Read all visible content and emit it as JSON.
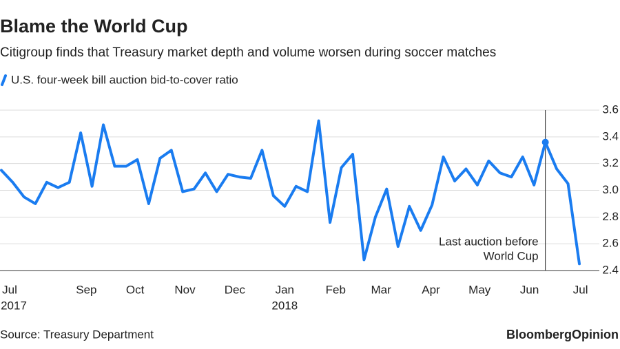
{
  "chart_data": {
    "type": "line",
    "title": "Blame the World Cup",
    "subtitle": "Citigroup finds that Treasury market depth and volume worsen during soccer matches",
    "source": "Source: Treasury Department",
    "brand": "BloombergOpinion",
    "categories": [
      null,
      null,
      null,
      null,
      null,
      null,
      null,
      null,
      null,
      null,
      null,
      null,
      null,
      null,
      null,
      null,
      null,
      null,
      null,
      null,
      null,
      null,
      null,
      null,
      null,
      null,
      null,
      null,
      null,
      null,
      null,
      null,
      null,
      null,
      null,
      null,
      null,
      null,
      null,
      null,
      null,
      null,
      null,
      null,
      null,
      null,
      null,
      null,
      null,
      null,
      null,
      null
    ],
    "series": [
      {
        "name": "U.S. four-week bill auction bid-to-cover ratio",
        "color": "#1a7cf0",
        "values": [
          3.15,
          3.06,
          2.95,
          2.9,
          3.06,
          3.02,
          3.06,
          3.43,
          3.03,
          3.49,
          3.18,
          3.18,
          3.23,
          2.9,
          3.24,
          3.3,
          2.99,
          3.01,
          3.13,
          2.99,
          3.12,
          3.1,
          3.09,
          3.3,
          2.96,
          2.88,
          3.03,
          2.99,
          3.52,
          2.76,
          3.17,
          3.27,
          2.48,
          2.8,
          3.01,
          2.58,
          2.88,
          2.7,
          2.89,
          3.25,
          3.07,
          3.16,
          3.04,
          3.22,
          3.13,
          3.1,
          3.25,
          3.04,
          3.36,
          3.16,
          3.05,
          2.45
        ]
      }
    ],
    "xlim": [
      0,
      51
    ],
    "xticks": [
      {
        "value": 0.2,
        "label": "Jul"
      },
      {
        "value": 7.5,
        "label": "Sep"
      },
      {
        "value": 11.8,
        "label": "Oct"
      },
      {
        "value": 16.2,
        "label": "Nov"
      },
      {
        "value": 20.6,
        "label": "Dec"
      },
      {
        "value": 25,
        "label": "Jan"
      },
      {
        "value": 29.5,
        "label": "Feb"
      },
      {
        "value": 33.5,
        "label": "Mar"
      },
      {
        "value": 37.9,
        "label": "Apr"
      },
      {
        "value": 42.2,
        "label": "May"
      },
      {
        "value": 46.6,
        "label": "Jun"
      },
      {
        "value": 51.1,
        "label": "Jul"
      }
    ],
    "xtick_years": [
      {
        "value": 0.2,
        "label": "2017"
      },
      {
        "value": 25,
        "label": "2018"
      }
    ],
    "ylim": [
      2.4,
      3.6
    ],
    "yticks": [
      {
        "value": 2.4,
        "label": "2.4"
      },
      {
        "value": 2.6,
        "label": "2.6"
      },
      {
        "value": 2.8,
        "label": "2.8"
      },
      {
        "value": 3.0,
        "label": "3.0"
      },
      {
        "value": 3.2,
        "label": "3.2"
      },
      {
        "value": 3.4,
        "label": "3.4"
      },
      {
        "value": 3.6,
        "label": "3.6"
      }
    ],
    "grid": true,
    "annotation": {
      "lines": [
        "Last auction before",
        "World Cup"
      ],
      "index": 48
    }
  }
}
